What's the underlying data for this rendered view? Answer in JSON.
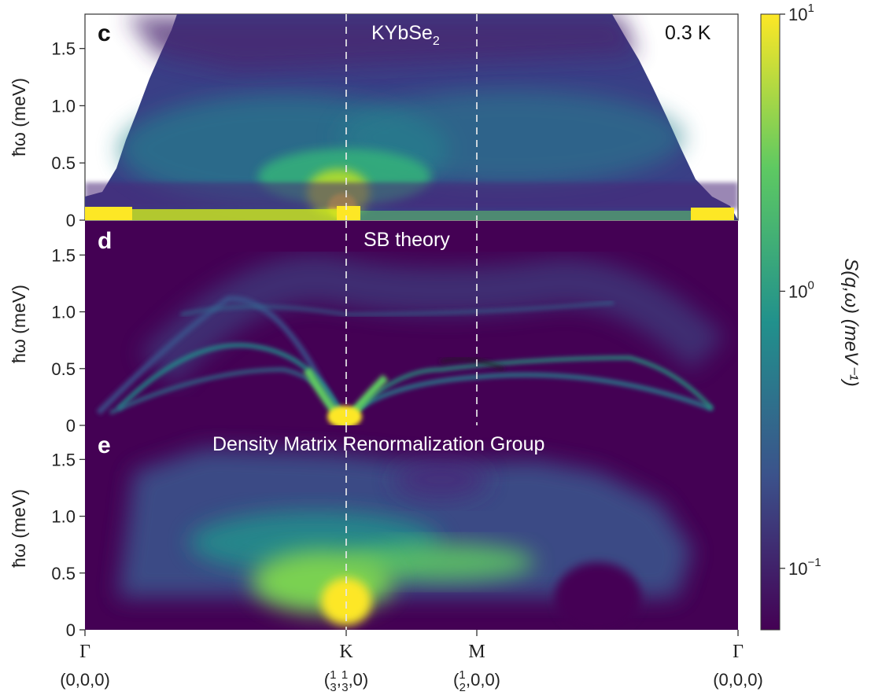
{
  "chart_data": {
    "type": "heatmap",
    "colormap": "viridis",
    "colorbar": {
      "label": "S(q,ω) (meV⁻¹)",
      "scale": "log",
      "min": 0.06,
      "max": 10,
      "ticks": [
        {
          "value": 10,
          "base": "10",
          "exp": "1"
        },
        {
          "value": 1,
          "base": "10",
          "exp": "0"
        },
        {
          "value": 0.1,
          "base": "10",
          "exp": "−1"
        }
      ],
      "colors": {
        "stop0": "#440154",
        "stop1": "#3b528b",
        "stop2": "#21918c",
        "stop3": "#5ec962",
        "stop4": "#fde725"
      }
    },
    "x_path": [
      {
        "symbol": "Γ",
        "coord": "(0,0,0)",
        "pos": 0.0
      },
      {
        "symbol": "K",
        "coord": "(1/3,1/3,0)",
        "pos": 0.4,
        "fraction": true,
        "fa": "1",
        "fb": "3",
        "fc": "1",
        "fd": "3",
        "tail": ",0)"
      },
      {
        "symbol": "M",
        "coord": "(1/2,0,0)",
        "pos": 0.6,
        "fraction": true,
        "fa": "1",
        "fb": "2",
        "tail": ",0,0)"
      },
      {
        "symbol": "Γ",
        "coord": "(0,0,0)",
        "pos": 1.0
      }
    ],
    "panels": [
      {
        "letter": "c",
        "title_main": "KYbSe",
        "title_sub": "2",
        "annotation": "0.3 K",
        "ylabel": "ħω (meV)",
        "ylim": [
          0,
          1.8
        ],
        "yticks": [
          "0",
          "0.5",
          "1.0",
          "1.5"
        ],
        "ytick_values": [
          0,
          0.5,
          1.0,
          1.5
        ],
        "dashed_at": [
          0.4,
          0.6
        ],
        "kind": "experiment"
      },
      {
        "letter": "d",
        "title_main": "SB theory",
        "ylabel": "ħω (meV)",
        "ylim": [
          0,
          1.8
        ],
        "yticks": [
          "0",
          "0.5",
          "1.0",
          "1.5"
        ],
        "ytick_values": [
          0,
          0.5,
          1.0,
          1.5
        ],
        "dashed_at": [
          0.4,
          0.6
        ],
        "kind": "theory"
      },
      {
        "letter": "e",
        "title_main": "Density Matrix Renormalization Group",
        "ylabel": "ħω (meV)",
        "ylim": [
          0,
          1.8
        ],
        "yticks": [
          "0",
          "0.5",
          "1.0",
          "1.5"
        ],
        "ytick_values": [
          0,
          0.5,
          1.0,
          1.5
        ],
        "dashed_at": [
          0.4
        ],
        "kind": "dmrg"
      }
    ]
  }
}
